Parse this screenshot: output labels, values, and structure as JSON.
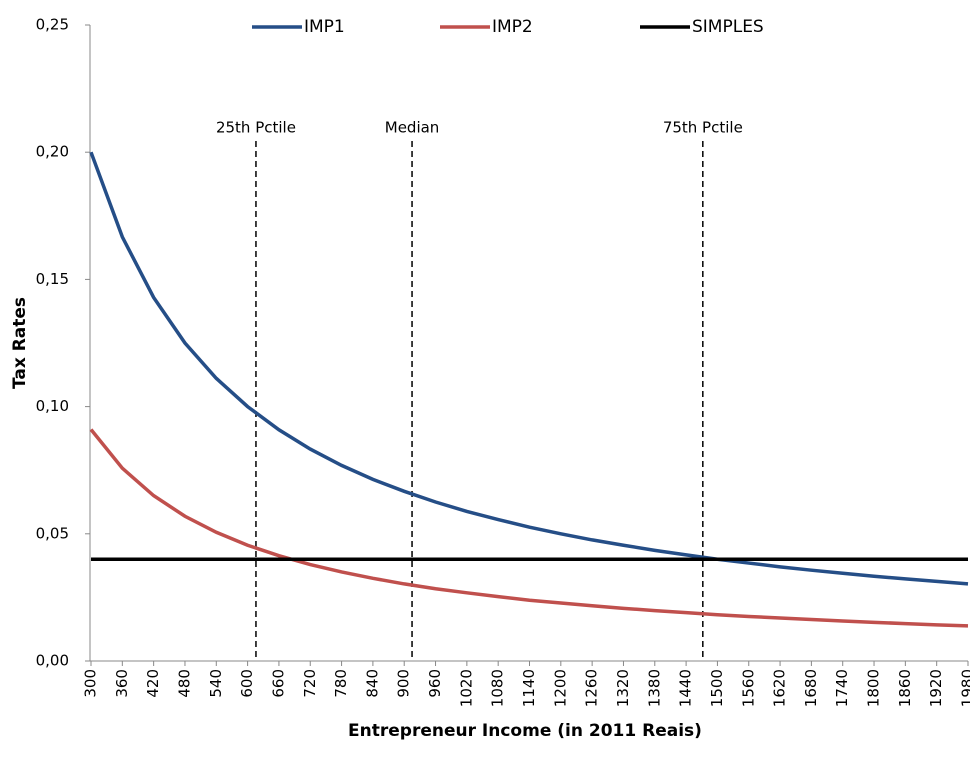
{
  "chart_data": {
    "type": "line",
    "x_label": "Entrepreneur Income (in 2011 Reais)",
    "y_label": "Tax Rates",
    "x": [
      300,
      360,
      420,
      480,
      540,
      600,
      660,
      720,
      780,
      840,
      900,
      960,
      1020,
      1080,
      1140,
      1200,
      1260,
      1320,
      1380,
      1440,
      1500,
      1560,
      1620,
      1680,
      1740,
      1800,
      1860,
      1920,
      1980
    ],
    "series": [
      {
        "name": "IMP1",
        "color": "#254e87",
        "values": [
          0.2,
          0.1667,
          0.1429,
          0.125,
          0.1111,
          0.1,
          0.0909,
          0.0833,
          0.0769,
          0.0714,
          0.0667,
          0.0625,
          0.0588,
          0.0556,
          0.0526,
          0.05,
          0.0476,
          0.0455,
          0.0435,
          0.0417,
          0.04,
          0.0385,
          0.037,
          0.0357,
          0.0345,
          0.0333,
          0.0323,
          0.0313,
          0.0303
        ]
      },
      {
        "name": "IMP2",
        "color": "#c0504d",
        "values": [
          0.091,
          0.0758,
          0.065,
          0.0569,
          0.0506,
          0.0455,
          0.0414,
          0.0379,
          0.035,
          0.0325,
          0.0303,
          0.0284,
          0.0268,
          0.0253,
          0.0239,
          0.0228,
          0.0217,
          0.0207,
          0.0198,
          0.019,
          0.0182,
          0.0175,
          0.0169,
          0.0163,
          0.0157,
          0.0152,
          0.0147,
          0.0142,
          0.0138
        ]
      },
      {
        "name": "SIMPLES",
        "color": "#000000",
        "values": [
          0.04,
          0.04,
          0.04,
          0.04,
          0.04,
          0.04,
          0.04,
          0.04,
          0.04,
          0.04,
          0.04,
          0.04,
          0.04,
          0.04,
          0.04,
          0.04,
          0.04,
          0.04,
          0.04,
          0.04,
          0.04,
          0.04,
          0.04,
          0.04,
          0.04,
          0.04,
          0.04,
          0.04,
          0.04
        ]
      }
    ],
    "annotations": [
      {
        "text": "25th Pctile",
        "x": 616
      },
      {
        "text": "Median",
        "x": 915
      },
      {
        "text": "75th Pctile",
        "x": 1472
      }
    ],
    "xlim": [
      300,
      1980
    ],
    "xticks": [
      300,
      360,
      420,
      480,
      540,
      600,
      660,
      720,
      780,
      840,
      900,
      960,
      1020,
      1080,
      1140,
      1200,
      1260,
      1320,
      1380,
      1440,
      1500,
      1560,
      1620,
      1680,
      1740,
      1800,
      1860,
      1920,
      1980
    ],
    "ylim": [
      0,
      0.25
    ],
    "yticks": [
      {
        "value": 0,
        "label": "0,00"
      },
      {
        "value": 0.05,
        "label": "0,05"
      },
      {
        "value": 0.1,
        "label": "0,10"
      },
      {
        "value": 0.15,
        "label": "0,15"
      },
      {
        "value": 0.2,
        "label": "0,20"
      },
      {
        "value": 0.25,
        "label": "0,25"
      }
    ],
    "legend": "top",
    "grid": false
  }
}
